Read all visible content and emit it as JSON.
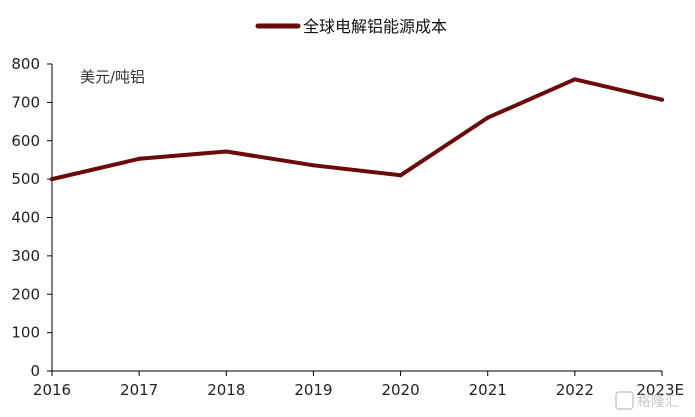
{
  "chart_data": {
    "type": "line",
    "categories": [
      "2016",
      "2017",
      "2018",
      "2019",
      "2020",
      "2021",
      "2022",
      "2023E"
    ],
    "series": [
      {
        "name": "全球电解铝能源成本",
        "values": [
          500,
          553,
          572,
          536,
          510,
          660,
          760,
          707
        ]
      }
    ],
    "title": "",
    "xlabel": "",
    "ylabel": "美元/吨铝",
    "ylim": [
      0,
      800
    ],
    "yticks": [
      "0",
      "100",
      "200",
      "300",
      "400",
      "500",
      "600",
      "700",
      "800"
    ],
    "grid": false,
    "legend_position": "top-center",
    "colors": {
      "series": "#6b0a0a",
      "axis": "#000000"
    }
  },
  "watermark": {
    "text": "格隆汇",
    "icon": "g-logo-icon"
  }
}
